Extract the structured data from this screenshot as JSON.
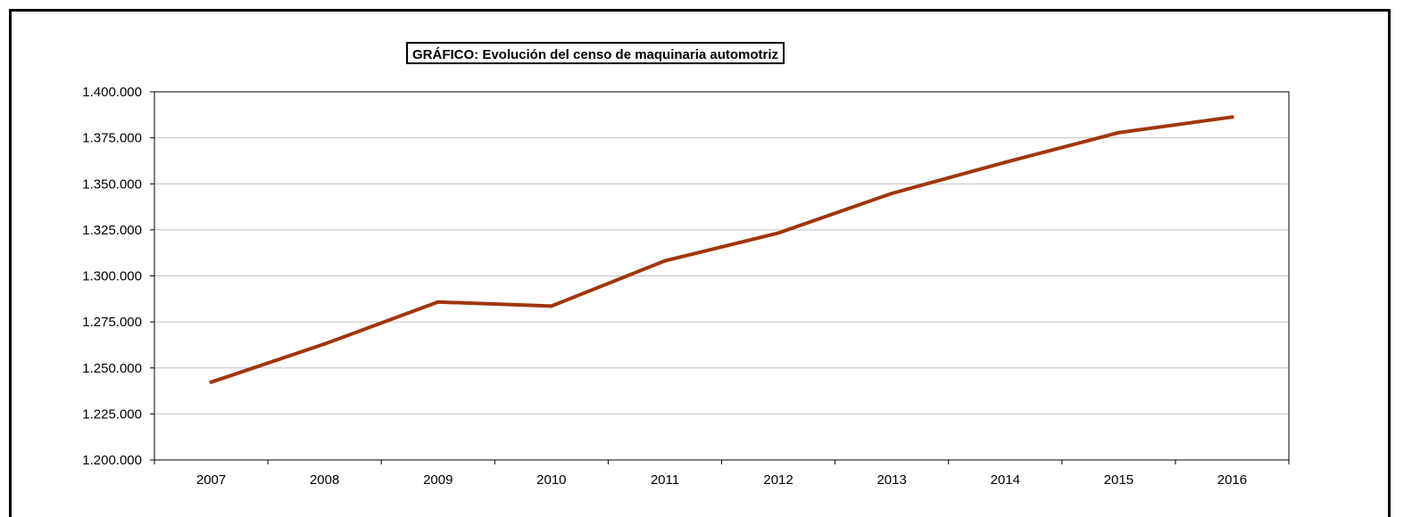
{
  "chart_data": {
    "type": "line",
    "title": "GRÁFICO: Evolución del censo de maquinaria automotriz",
    "xlabel": "",
    "ylabel": "",
    "categories": [
      "2007",
      "2008",
      "2009",
      "2010",
      "2011",
      "2012",
      "2013",
      "2014",
      "2015",
      "2016"
    ],
    "series": [
      {
        "values": [
          1242300,
          1263000,
          1285800,
          1283600,
          1308200,
          1323300,
          1344800,
          1361700,
          1377800,
          1386300
        ],
        "color": "#a0360a"
      }
    ],
    "ylim": [
      1200000,
      1400000
    ],
    "yticks": [
      1200000,
      1225000,
      1250000,
      1275000,
      1300000,
      1325000,
      1350000,
      1375000,
      1400000
    ],
    "ytick_labels": [
      "1.200.000",
      "1.225.000",
      "1.250.000",
      "1.275.000",
      "1.300.000",
      "1.325.000",
      "1.350.000",
      "1.375.000",
      "1.400.000"
    ],
    "grid": true,
    "gridline_color": "#c0c0c0",
    "legend": "none"
  }
}
